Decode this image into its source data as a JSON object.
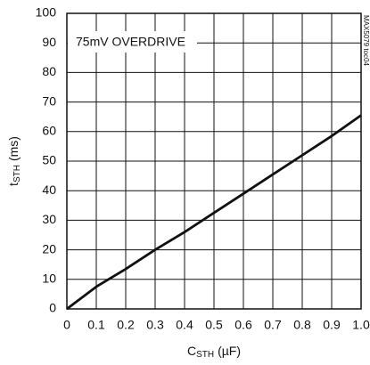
{
  "chart_data": {
    "type": "line",
    "annotation": "75mV OVERDRIVE",
    "figure_id": "MAX5079 toc04",
    "x_label": {
      "main": "C",
      "sub": "STH",
      "unit": "(µF)"
    },
    "y_label": {
      "main": "t",
      "sub": "STH",
      "unit": "(ms)"
    },
    "x": [
      0,
      0.1,
      0.2,
      0.3,
      0.4,
      0.5,
      0.6,
      0.7,
      0.8,
      0.9,
      1.0
    ],
    "series": [
      {
        "color": "#111111",
        "values": [
          0,
          7.5,
          13.5,
          20,
          26,
          32.5,
          39,
          45.5,
          52,
          58.5,
          65.5
        ]
      }
    ],
    "xlim": [
      0,
      1
    ],
    "ylim": [
      0,
      100
    ],
    "xticks": [
      0,
      0.1,
      0.2,
      0.3,
      0.4,
      0.5,
      0.6,
      0.7,
      0.8,
      0.9,
      {
        "value": 1,
        "label": "1.0"
      }
    ],
    "yticks": [
      0,
      10,
      20,
      30,
      40,
      50,
      60,
      70,
      80,
      90,
      100
    ],
    "grid": true
  }
}
